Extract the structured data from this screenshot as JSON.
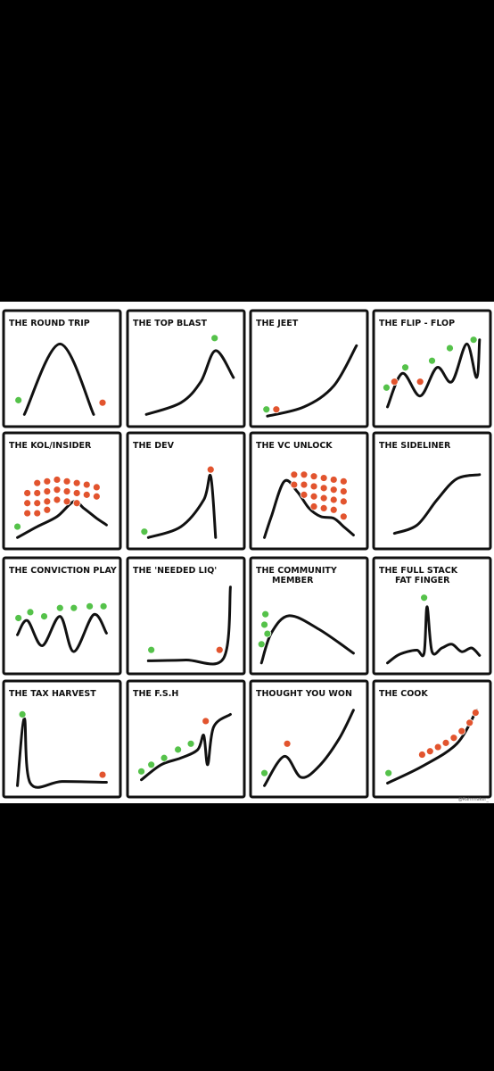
{
  "panels": [
    {
      "title": "THE ROUND TRIP",
      "subtitle": "",
      "curve": [
        [
          0.12,
          0.94
        ],
        [
          0.48,
          0.1
        ],
        [
          0.82,
          0.94
        ]
      ],
      "buys": [
        [
          0.06,
          0.77
        ]
      ],
      "sells": [
        [
          0.91,
          0.8
        ]
      ]
    },
    {
      "title": "THE TOP BLAST",
      "subtitle": "",
      "curve": [
        [
          0.1,
          0.94
        ],
        [
          0.45,
          0.8
        ],
        [
          0.65,
          0.55
        ],
        [
          0.8,
          0.18
        ],
        [
          0.98,
          0.5
        ]
      ],
      "buys": [
        [
          0.79,
          0.03
        ]
      ],
      "sells": []
    },
    {
      "title": "THE JEET",
      "subtitle": "",
      "curve": [
        [
          0.08,
          0.96
        ],
        [
          0.45,
          0.85
        ],
        [
          0.75,
          0.6
        ],
        [
          0.98,
          0.12
        ]
      ],
      "buys": [
        [
          0.07,
          0.88
        ]
      ],
      "sells": [
        [
          0.17,
          0.88
        ]
      ]
    },
    {
      "title": "THE FLIP - FLOP",
      "subtitle": "",
      "curve": [
        [
          0.05,
          0.85
        ],
        [
          0.2,
          0.45
        ],
        [
          0.38,
          0.72
        ],
        [
          0.55,
          0.38
        ],
        [
          0.7,
          0.55
        ],
        [
          0.85,
          0.1
        ],
        [
          0.95,
          0.5
        ],
        [
          0.98,
          0.05
        ]
      ],
      "buys": [
        [
          0.04,
          0.62
        ],
        [
          0.23,
          0.38
        ],
        [
          0.5,
          0.3
        ],
        [
          0.68,
          0.15
        ],
        [
          0.92,
          0.05
        ]
      ],
      "sells": [
        [
          0.12,
          0.55
        ],
        [
          0.38,
          0.55
        ]
      ]
    },
    {
      "title": "THE KOL/INSIDER",
      "subtitle": "",
      "curve": [
        [
          0.05,
          0.95
        ],
        [
          0.25,
          0.82
        ],
        [
          0.45,
          0.7
        ],
        [
          0.62,
          0.52
        ],
        [
          0.72,
          0.6
        ],
        [
          0.85,
          0.72
        ],
        [
          0.95,
          0.8
        ]
      ],
      "buys": [
        [
          0.05,
          0.82
        ]
      ],
      "sells": [
        [
          0.25,
          0.3
        ],
        [
          0.35,
          0.28
        ],
        [
          0.45,
          0.26
        ],
        [
          0.55,
          0.28
        ],
        [
          0.65,
          0.3
        ],
        [
          0.75,
          0.32
        ],
        [
          0.85,
          0.35
        ],
        [
          0.25,
          0.42
        ],
        [
          0.35,
          0.4
        ],
        [
          0.45,
          0.38
        ],
        [
          0.55,
          0.4
        ],
        [
          0.65,
          0.42
        ],
        [
          0.75,
          0.44
        ],
        [
          0.85,
          0.46
        ],
        [
          0.25,
          0.54
        ],
        [
          0.35,
          0.52
        ],
        [
          0.45,
          0.5
        ],
        [
          0.55,
          0.52
        ],
        [
          0.15,
          0.42
        ],
        [
          0.15,
          0.54
        ],
        [
          0.25,
          0.66
        ],
        [
          0.35,
          0.62
        ],
        [
          0.15,
          0.66
        ],
        [
          0.65,
          0.54
        ]
      ]
    },
    {
      "title": "THE DEV",
      "subtitle": "",
      "curve": [
        [
          0.12,
          0.95
        ],
        [
          0.45,
          0.82
        ],
        [
          0.68,
          0.5
        ],
        [
          0.75,
          0.22
        ],
        [
          0.8,
          0.95
        ]
      ],
      "buys": [
        [
          0.08,
          0.88
        ]
      ],
      "sells": [
        [
          0.75,
          0.14
        ]
      ]
    },
    {
      "title": "THE VC UNLOCK",
      "subtitle": "",
      "curve": [
        [
          0.05,
          0.95
        ],
        [
          0.12,
          0.7
        ],
        [
          0.25,
          0.28
        ],
        [
          0.38,
          0.4
        ],
        [
          0.5,
          0.6
        ],
        [
          0.62,
          0.7
        ],
        [
          0.75,
          0.72
        ],
        [
          0.85,
          0.82
        ],
        [
          0.95,
          0.92
        ]
      ],
      "buys": [],
      "sells": [
        [
          0.35,
          0.2
        ],
        [
          0.45,
          0.2
        ],
        [
          0.55,
          0.22
        ],
        [
          0.65,
          0.24
        ],
        [
          0.75,
          0.26
        ],
        [
          0.85,
          0.28
        ],
        [
          0.35,
          0.32
        ],
        [
          0.45,
          0.32
        ],
        [
          0.55,
          0.34
        ],
        [
          0.65,
          0.36
        ],
        [
          0.75,
          0.38
        ],
        [
          0.85,
          0.4
        ],
        [
          0.45,
          0.44
        ],
        [
          0.55,
          0.46
        ],
        [
          0.65,
          0.48
        ],
        [
          0.75,
          0.5
        ],
        [
          0.85,
          0.52
        ],
        [
          0.55,
          0.58
        ],
        [
          0.65,
          0.6
        ],
        [
          0.75,
          0.62
        ],
        [
          0.85,
          0.7
        ]
      ]
    },
    {
      "title": "THE SIDELINER",
      "subtitle": "",
      "curve": [
        [
          0.12,
          0.9
        ],
        [
          0.35,
          0.8
        ],
        [
          0.55,
          0.5
        ],
        [
          0.75,
          0.25
        ],
        [
          0.98,
          0.2
        ]
      ],
      "buys": [],
      "sells": []
    },
    {
      "title": "THE CONVICTION PLAY",
      "subtitle": "",
      "curve": [
        [
          0.05,
          0.62
        ],
        [
          0.15,
          0.45
        ],
        [
          0.3,
          0.75
        ],
        [
          0.48,
          0.4
        ],
        [
          0.62,
          0.82
        ],
        [
          0.82,
          0.38
        ],
        [
          0.95,
          0.6
        ]
      ],
      "buys": [
        [
          0.06,
          0.42
        ],
        [
          0.18,
          0.35
        ],
        [
          0.32,
          0.4
        ],
        [
          0.48,
          0.3
        ],
        [
          0.62,
          0.3
        ],
        [
          0.78,
          0.28
        ],
        [
          0.92,
          0.28
        ]
      ],
      "sells": []
    },
    {
      "title": "THE 'NEEDED LIQ'",
      "subtitle": "",
      "curve": [
        [
          0.12,
          0.93
        ],
        [
          0.5,
          0.92
        ],
        [
          0.88,
          0.9
        ],
        [
          0.95,
          0.05
        ]
      ],
      "buys": [
        [
          0.15,
          0.8
        ]
      ],
      "sells": [
        [
          0.84,
          0.8
        ]
      ]
    },
    {
      "title": "THE COMMUNITY",
      "subtitle": "MEMBER",
      "curve": [
        [
          0.02,
          0.95
        ],
        [
          0.12,
          0.55
        ],
        [
          0.3,
          0.32
        ],
        [
          0.6,
          0.5
        ],
        [
          0.95,
          0.82
        ]
      ],
      "buys": [
        [
          0.06,
          0.3
        ],
        [
          0.05,
          0.44
        ],
        [
          0.08,
          0.56
        ],
        [
          0.02,
          0.7
        ]
      ],
      "sells": []
    },
    {
      "title": "THE FULL STACK",
      "subtitle": "FAT FINGER",
      "curve": [
        [
          0.05,
          0.95
        ],
        [
          0.15,
          0.85
        ],
        [
          0.25,
          0.8
        ],
        [
          0.35,
          0.78
        ],
        [
          0.42,
          0.82
        ],
        [
          0.45,
          0.2
        ],
        [
          0.5,
          0.8
        ],
        [
          0.6,
          0.75
        ],
        [
          0.7,
          0.7
        ],
        [
          0.8,
          0.8
        ],
        [
          0.9,
          0.75
        ],
        [
          0.98,
          0.85
        ]
      ],
      "buys": [
        [
          0.42,
          0.08
        ]
      ],
      "sells": []
    },
    {
      "title": "THE TAX HARVEST",
      "subtitle": "",
      "curve": [
        [
          0.05,
          0.95
        ],
        [
          0.12,
          0.15
        ],
        [
          0.18,
          0.92
        ],
        [
          0.5,
          0.9
        ],
        [
          0.95,
          0.91
        ]
      ],
      "buys": [
        [
          0.1,
          0.1
        ]
      ],
      "sells": [
        [
          0.91,
          0.82
        ]
      ]
    },
    {
      "title": "THE F.S.H",
      "subtitle": "",
      "curve": [
        [
          0.05,
          0.88
        ],
        [
          0.25,
          0.7
        ],
        [
          0.45,
          0.62
        ],
        [
          0.62,
          0.52
        ],
        [
          0.68,
          0.35
        ],
        [
          0.72,
          0.7
        ],
        [
          0.78,
          0.25
        ],
        [
          0.95,
          0.1
        ]
      ],
      "buys": [
        [
          0.05,
          0.78
        ],
        [
          0.15,
          0.7
        ],
        [
          0.28,
          0.62
        ],
        [
          0.42,
          0.52
        ],
        [
          0.55,
          0.45
        ]
      ],
      "sells": [
        [
          0.7,
          0.18
        ]
      ]
    },
    {
      "title": "THOUGHT YOU WON",
      "subtitle": "",
      "curve": [
        [
          0.05,
          0.95
        ],
        [
          0.25,
          0.6
        ],
        [
          0.42,
          0.85
        ],
        [
          0.6,
          0.72
        ],
        [
          0.8,
          0.4
        ],
        [
          0.95,
          0.05
        ]
      ],
      "buys": [
        [
          0.05,
          0.8
        ]
      ],
      "sells": [
        [
          0.28,
          0.45
        ]
      ]
    },
    {
      "title": "THE COOK",
      "subtitle": "",
      "curve": [
        [
          0.05,
          0.92
        ],
        [
          0.4,
          0.72
        ],
        [
          0.75,
          0.45
        ],
        [
          0.95,
          0.05
        ]
      ],
      "buys": [
        [
          0.06,
          0.8
        ]
      ],
      "sells": [
        [
          0.4,
          0.58
        ],
        [
          0.48,
          0.54
        ],
        [
          0.56,
          0.49
        ],
        [
          0.64,
          0.44
        ],
        [
          0.72,
          0.38
        ],
        [
          0.8,
          0.3
        ],
        [
          0.88,
          0.2
        ],
        [
          0.94,
          0.08
        ]
      ]
    }
  ],
  "credit": "@Rainmaker_"
}
